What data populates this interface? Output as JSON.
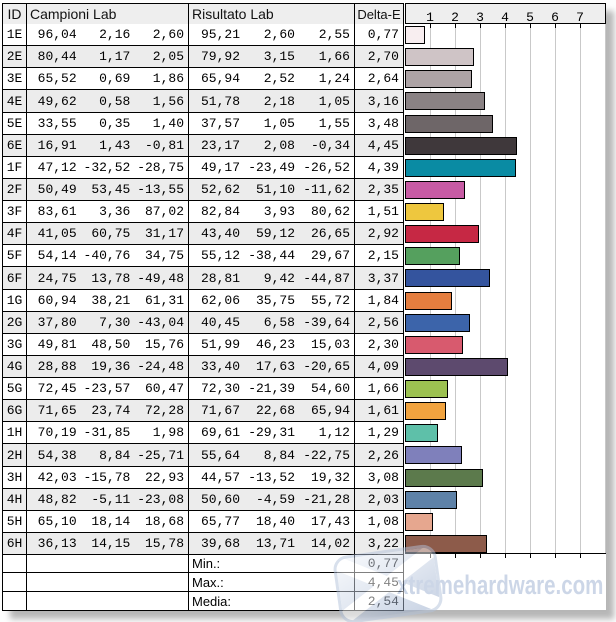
{
  "table": {
    "header": {
      "id": "ID",
      "campioni": "Campioni Lab",
      "risultato": "Risultato Lab",
      "delta": "Delta-E"
    },
    "rows": [
      {
        "id": "1E",
        "campioni": [
          "96,04",
          "2,16",
          "2,60"
        ],
        "risultato": [
          "95,21",
          "2,60",
          "2,55"
        ],
        "delta": "0,77",
        "value": 0.77,
        "color": "#f8eef0"
      },
      {
        "id": "2E",
        "campioni": [
          "80,44",
          "1,17",
          "2,05"
        ],
        "risultato": [
          "79,92",
          "3,15",
          "1,66"
        ],
        "delta": "2,70",
        "value": 2.7,
        "color": "#cfc4c6"
      },
      {
        "id": "3E",
        "campioni": [
          "65,52",
          "0,69",
          "1,86"
        ],
        "risultato": [
          "65,94",
          "2,52",
          "1,24"
        ],
        "delta": "2,64",
        "value": 2.64,
        "color": "#ada3a5"
      },
      {
        "id": "4E",
        "campioni": [
          "49,62",
          "0,58",
          "1,56"
        ],
        "risultato": [
          "51,78",
          "2,18",
          "1,05"
        ],
        "delta": "3,16",
        "value": 3.16,
        "color": "#8a8284"
      },
      {
        "id": "5E",
        "campioni": [
          "33,55",
          "0,35",
          "1,40"
        ],
        "risultato": [
          "37,57",
          "1,05",
          "1,55"
        ],
        "delta": "3,48",
        "value": 3.48,
        "color": "#6e6668"
      },
      {
        "id": "6E",
        "campioni": [
          "16,91",
          "1,43",
          "-0,81"
        ],
        "risultato": [
          "23,17",
          "2,08",
          "-0,34"
        ],
        "delta": "4,45",
        "value": 4.45,
        "color": "#3f383b"
      },
      {
        "id": "1F",
        "campioni": [
          "47,12",
          "-32,52",
          "-28,75"
        ],
        "risultato": [
          "49,17",
          "-23,49",
          "-26,52"
        ],
        "delta": "4,39",
        "value": 4.39,
        "color": "#0a8ba3"
      },
      {
        "id": "2F",
        "campioni": [
          "50,49",
          "53,45",
          "-13,55"
        ],
        "risultato": [
          "52,62",
          "51,10",
          "-11,62"
        ],
        "delta": "2,35",
        "value": 2.35,
        "color": "#c75ba4"
      },
      {
        "id": "3F",
        "campioni": [
          "83,61",
          "3,36",
          "87,02"
        ],
        "risultato": [
          "82,84",
          "3,93",
          "80,62"
        ],
        "delta": "1,51",
        "value": 1.51,
        "color": "#eec73e"
      },
      {
        "id": "4F",
        "campioni": [
          "41,05",
          "60,75",
          "31,17"
        ],
        "risultato": [
          "43,40",
          "59,12",
          "26,65"
        ],
        "delta": "2,92",
        "value": 2.92,
        "color": "#c62844"
      },
      {
        "id": "5F",
        "campioni": [
          "54,14",
          "-40,76",
          "34,75"
        ],
        "risultato": [
          "55,12",
          "-38,44",
          "29,67"
        ],
        "delta": "2,15",
        "value": 2.15,
        "color": "#55a05e"
      },
      {
        "id": "6F",
        "campioni": [
          "24,75",
          "13,78",
          "-49,48"
        ],
        "risultato": [
          "28,81",
          "9,42",
          "-44,87"
        ],
        "delta": "3,37",
        "value": 3.37,
        "color": "#34549e"
      },
      {
        "id": "1G",
        "campioni": [
          "60,94",
          "38,21",
          "61,31"
        ],
        "risultato": [
          "62,06",
          "35,75",
          "55,72"
        ],
        "delta": "1,84",
        "value": 1.84,
        "color": "#e57e3f"
      },
      {
        "id": "2G",
        "campioni": [
          "37,80",
          "7,30",
          "-43,04"
        ],
        "risultato": [
          "40,45",
          "6,58",
          "-39,64"
        ],
        "delta": "2,56",
        "value": 2.56,
        "color": "#3c64aa"
      },
      {
        "id": "3G",
        "campioni": [
          "49,81",
          "48,50",
          "15,76"
        ],
        "risultato": [
          "51,99",
          "46,23",
          "15,03"
        ],
        "delta": "2,30",
        "value": 2.3,
        "color": "#d85a6e"
      },
      {
        "id": "4G",
        "campioni": [
          "28,88",
          "19,36",
          "-24,48"
        ],
        "risultato": [
          "33,40",
          "17,63",
          "-20,65"
        ],
        "delta": "4,09",
        "value": 4.09,
        "color": "#5d4a6e"
      },
      {
        "id": "5G",
        "campioni": [
          "72,45",
          "-23,57",
          "60,47"
        ],
        "risultato": [
          "72,30",
          "-21,39",
          "54,60"
        ],
        "delta": "1,66",
        "value": 1.66,
        "color": "#9cc151"
      },
      {
        "id": "6G",
        "campioni": [
          "71,65",
          "23,74",
          "72,28"
        ],
        "risultato": [
          "71,67",
          "22,68",
          "65,94"
        ],
        "delta": "1,61",
        "value": 1.61,
        "color": "#f1a33f"
      },
      {
        "id": "1H",
        "campioni": [
          "70,19",
          "-31,85",
          "1,98"
        ],
        "risultato": [
          "69,61",
          "-29,31",
          "1,12"
        ],
        "delta": "1,29",
        "value": 1.29,
        "color": "#5ec0a9"
      },
      {
        "id": "2H",
        "campioni": [
          "54,38",
          "8,84",
          "-25,71"
        ],
        "risultato": [
          "55,64",
          "8,84",
          "-22,75"
        ],
        "delta": "2,26",
        "value": 2.26,
        "color": "#7f80bb"
      },
      {
        "id": "3H",
        "campioni": [
          "42,03",
          "-15,78",
          "22,93"
        ],
        "risultato": [
          "44,57",
          "-13,52",
          "19,32"
        ],
        "delta": "3,08",
        "value": 3.08,
        "color": "#5c7a4c"
      },
      {
        "id": "4H",
        "campioni": [
          "48,82",
          "-5,11",
          "-23,08"
        ],
        "risultato": [
          "50,60",
          "-4,59",
          "-21,28"
        ],
        "delta": "2,03",
        "value": 2.03,
        "color": "#5e82a8"
      },
      {
        "id": "5H",
        "campioni": [
          "65,10",
          "18,14",
          "18,68"
        ],
        "risultato": [
          "65,77",
          "18,40",
          "17,43"
        ],
        "delta": "1,08",
        "value": 1.08,
        "color": "#e6a78f"
      },
      {
        "id": "6H",
        "campioni": [
          "36,13",
          "14,15",
          "15,78"
        ],
        "risultato": [
          "39,68",
          "13,71",
          "14,02"
        ],
        "delta": "3,22",
        "value": 3.22,
        "color": "#8d5b4a"
      }
    ],
    "summary": [
      {
        "label": "Min.:",
        "value": "0,77"
      },
      {
        "label": "Max.:",
        "value": "4,45"
      },
      {
        "label": "Media:",
        "value": "2,54"
      }
    ]
  },
  "chart_data": {
    "type": "bar",
    "orientation": "horizontal",
    "title": "",
    "xlabel": "Delta-E",
    "categories": [
      "1E",
      "2E",
      "3E",
      "4E",
      "5E",
      "6E",
      "1F",
      "2F",
      "3F",
      "4F",
      "5F",
      "6F",
      "1G",
      "2G",
      "3G",
      "4G",
      "5G",
      "6G",
      "1H",
      "2H",
      "3H",
      "4H",
      "5H",
      "6H"
    ],
    "values": [
      0.77,
      2.7,
      2.64,
      3.16,
      3.48,
      4.45,
      4.39,
      2.35,
      1.51,
      2.92,
      2.15,
      3.37,
      1.84,
      2.56,
      2.3,
      4.09,
      1.66,
      1.61,
      1.29,
      2.26,
      3.08,
      2.03,
      1.08,
      3.22
    ],
    "bar_colors": [
      "#f8eef0",
      "#cfc4c6",
      "#ada3a5",
      "#8a8284",
      "#6e6668",
      "#3f383b",
      "#0a8ba3",
      "#c75ba4",
      "#eec73e",
      "#c62844",
      "#55a05e",
      "#34549e",
      "#e57e3f",
      "#3c64aa",
      "#d85a6e",
      "#5d4a6e",
      "#9cc151",
      "#f1a33f",
      "#5ec0a9",
      "#7f80bb",
      "#5c7a4c",
      "#5e82a8",
      "#e6a78f",
      "#8d5b4a"
    ],
    "xlim": [
      0,
      8
    ],
    "xticks": [
      "1",
      "2",
      "3",
      "4",
      "5",
      "6",
      "7"
    ],
    "grid": true,
    "legend": false
  },
  "watermark": {
    "text": "xtremehardware.com"
  },
  "colors": {
    "header_bg": "#eeeeee",
    "stripe_bg": "#ececec",
    "border": "#000000",
    "gridline": "#c9c9c9",
    "watermark": "#9bafd0"
  }
}
